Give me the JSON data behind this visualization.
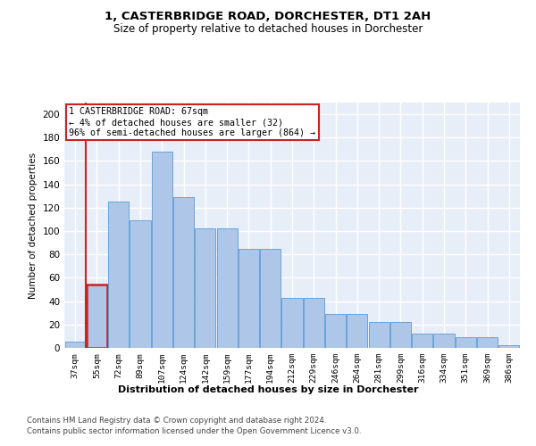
{
  "title": "1, CASTERBRIDGE ROAD, DORCHESTER, DT1 2AH",
  "subtitle": "Size of property relative to detached houses in Dorchester",
  "xlabel": "Distribution of detached houses by size in Dorchester",
  "ylabel": "Number of detached properties",
  "bar_values": [
    5,
    54,
    125,
    109,
    168,
    129,
    102,
    102,
    85,
    85,
    43,
    43,
    29,
    29,
    22,
    22,
    12,
    12,
    9,
    9,
    2
  ],
  "bar_labels": [
    "37sqm",
    "55sqm",
    "72sqm",
    "89sqm",
    "107sqm",
    "124sqm",
    "142sqm",
    "159sqm",
    "177sqm",
    "194sqm",
    "212sqm",
    "229sqm",
    "246sqm",
    "264sqm",
    "281sqm",
    "299sqm",
    "316sqm",
    "334sqm",
    "351sqm",
    "369sqm",
    "386sqm"
  ],
  "bar_color": "#aec6e8",
  "bar_edge_color": "#5b9bd5",
  "highlight_bar_index": 1,
  "highlight_color": "#cc2222",
  "vline_x": 0.5,
  "annotation_text": "1 CASTERBRIDGE ROAD: 67sqm\n← 4% of detached houses are smaller (32)\n96% of semi-detached houses are larger (864) →",
  "annotation_box_color": "white",
  "annotation_box_edge_color": "#cc2222",
  "ylim": [
    0,
    210
  ],
  "yticks": [
    0,
    20,
    40,
    60,
    80,
    100,
    120,
    140,
    160,
    180,
    200
  ],
  "footer1": "Contains HM Land Registry data © Crown copyright and database right 2024.",
  "footer2": "Contains public sector information licensed under the Open Government Licence v3.0.",
  "bg_color": "#e8eef8",
  "grid_color": "#ffffff",
  "fig_bg_color": "#ffffff"
}
